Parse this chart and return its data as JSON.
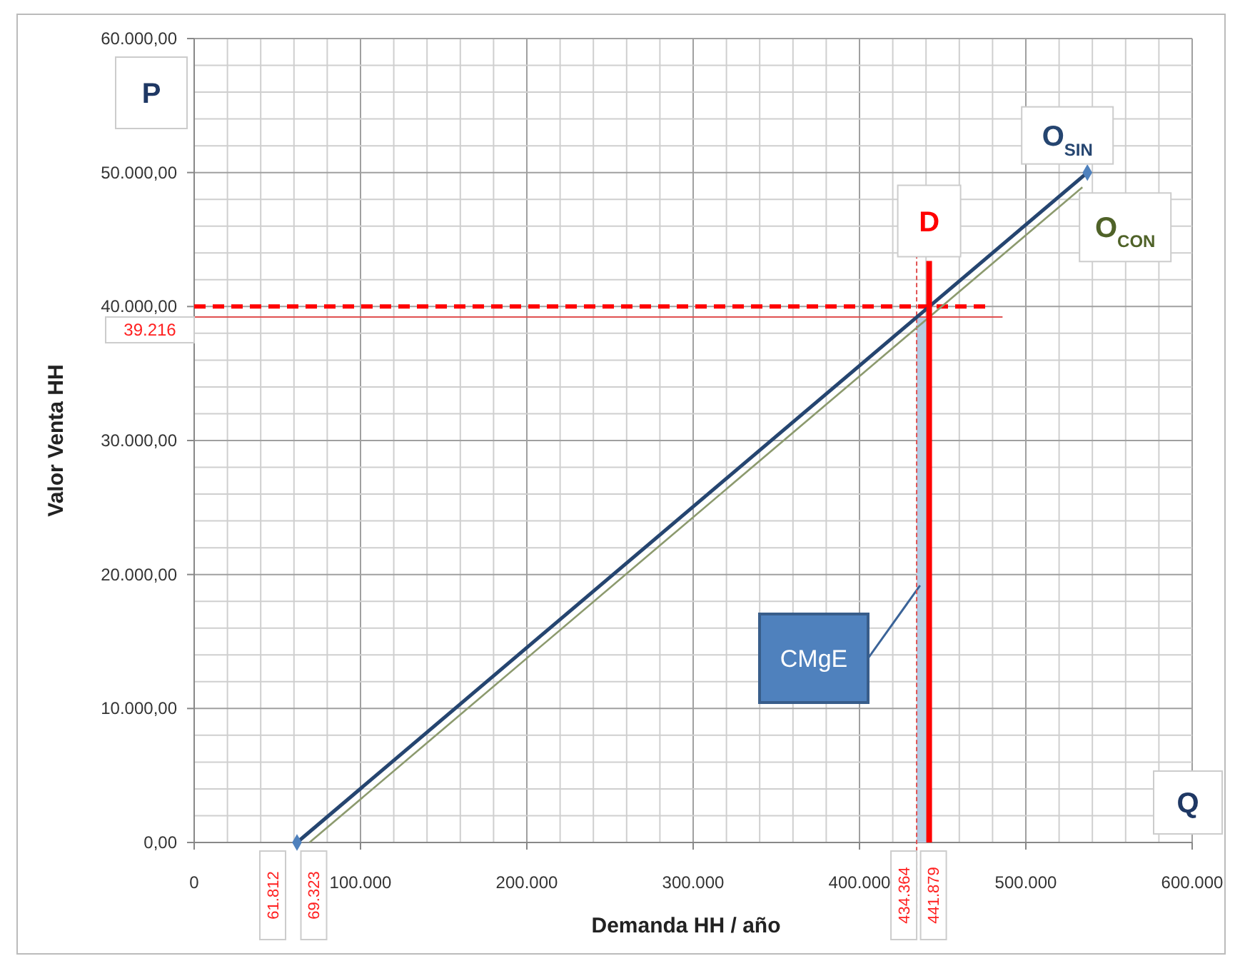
{
  "chart_data": {
    "type": "line",
    "xlabel": "Demanda HH / año",
    "ylabel": "Valor Venta HH",
    "xlim": [
      0,
      600000
    ],
    "ylim": [
      0,
      60000
    ],
    "xticks": [
      {
        "value": 0,
        "label": "0"
      },
      {
        "value": 20000,
        "label": null
      },
      {
        "value": 40000,
        "label": null
      },
      {
        "value": 60000,
        "label": null
      },
      {
        "value": 80000,
        "label": null
      },
      {
        "value": 100000,
        "label": "100.000"
      },
      {
        "value": 120000,
        "label": null
      },
      {
        "value": 140000,
        "label": null
      },
      {
        "value": 160000,
        "label": null
      },
      {
        "value": 180000,
        "label": null
      },
      {
        "value": 200000,
        "label": "200.000"
      },
      {
        "value": 220000,
        "label": null
      },
      {
        "value": 240000,
        "label": null
      },
      {
        "value": 260000,
        "label": null
      },
      {
        "value": 280000,
        "label": null
      },
      {
        "value": 300000,
        "label": "300.000"
      },
      {
        "value": 320000,
        "label": null
      },
      {
        "value": 340000,
        "label": null
      },
      {
        "value": 360000,
        "label": null
      },
      {
        "value": 380000,
        "label": null
      },
      {
        "value": 400000,
        "label": "400.000"
      },
      {
        "value": 420000,
        "label": null
      },
      {
        "value": 440000,
        "label": null
      },
      {
        "value": 460000,
        "label": null
      },
      {
        "value": 480000,
        "label": null
      },
      {
        "value": 500000,
        "label": "500.000"
      },
      {
        "value": 520000,
        "label": null
      },
      {
        "value": 540000,
        "label": null
      },
      {
        "value": 560000,
        "label": null
      },
      {
        "value": 580000,
        "label": null
      },
      {
        "value": 600000,
        "label": "600.000"
      }
    ],
    "yticks": [
      {
        "value": 0,
        "label": "0,00"
      },
      {
        "value": 2000,
        "label": null
      },
      {
        "value": 4000,
        "label": null
      },
      {
        "value": 6000,
        "label": null
      },
      {
        "value": 8000,
        "label": null
      },
      {
        "value": 10000,
        "label": "10.000,00"
      },
      {
        "value": 12000,
        "label": null
      },
      {
        "value": 14000,
        "label": null
      },
      {
        "value": 16000,
        "label": null
      },
      {
        "value": 18000,
        "label": null
      },
      {
        "value": 20000,
        "label": "20.000,00"
      },
      {
        "value": 22000,
        "label": null
      },
      {
        "value": 24000,
        "label": null
      },
      {
        "value": 26000,
        "label": null
      },
      {
        "value": 28000,
        "label": null
      },
      {
        "value": 30000,
        "label": "30.000,00"
      },
      {
        "value": 32000,
        "label": null
      },
      {
        "value": 34000,
        "label": null
      },
      {
        "value": 36000,
        "label": null
      },
      {
        "value": 38000,
        "label": null
      },
      {
        "value": 40000,
        "label": "40.000,00"
      },
      {
        "value": 42000,
        "label": null
      },
      {
        "value": 44000,
        "label": null
      },
      {
        "value": 46000,
        "label": null
      },
      {
        "value": 48000,
        "label": null
      },
      {
        "value": 50000,
        "label": "50.000,00"
      },
      {
        "value": 52000,
        "label": null
      },
      {
        "value": 54000,
        "label": null
      },
      {
        "value": 56000,
        "label": null
      },
      {
        "value": 58000,
        "label": null
      },
      {
        "value": 60000,
        "label": "60.000,00"
      }
    ],
    "grid": true,
    "legend": false,
    "series": [
      {
        "name": "O$_{SIN}$",
        "type": "line",
        "x": [
          61812,
          537000
        ],
        "values": [
          0,
          50000
        ],
        "color": "#254570",
        "marker": "diamond"
      },
      {
        "name": "O$_{CON}$",
        "type": "line",
        "x": [
          69323,
          534000
        ],
        "values": [
          0,
          48900
        ],
        "color": "#8c9a6e",
        "marker": "none"
      },
      {
        "name": "D",
        "type": "line",
        "x": [
          441879,
          441879
        ],
        "values": [
          43400,
          0
        ],
        "color": "#ff0000",
        "marker": "none"
      }
    ],
    "ref_lines": [
      {
        "axis": "y",
        "value": 40000,
        "color": "#ff0000",
        "line_style": "dashed"
      },
      {
        "axis": "y",
        "value": 39216,
        "label": "39.216",
        "color": "#e05050",
        "line_style": "solid"
      },
      {
        "axis": "x",
        "value": 434364,
        "label": "434.364",
        "color": "#e05050",
        "line_style": "dashed"
      }
    ],
    "bands": [
      {
        "axis": "x",
        "from": 434364,
        "to": 441879,
        "label": "CMgE",
        "color": "#b8cce4"
      }
    ],
    "annotations": [
      {
        "text": "61.812",
        "x": 61812,
        "y": 0
      },
      {
        "text": "69.323",
        "x": 69323,
        "y": 0
      },
      {
        "text": "441.879",
        "x": 441879,
        "y": 0
      },
      "P",
      "Q"
    ]
  }
}
